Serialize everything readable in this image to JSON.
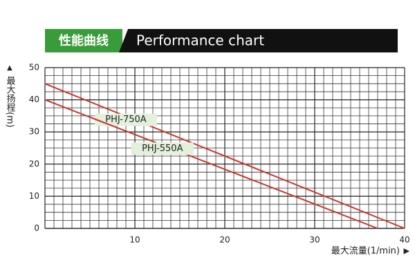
{
  "chart_data": {
    "type": "line",
    "title": "性能曲线",
    "subtitle": "Performance chart",
    "x_label": "最大流量(1/min)",
    "y_label": "最大扬程(m)",
    "xlim": [
      0,
      40
    ],
    "xticks": [
      10,
      20,
      30,
      40
    ],
    "ylim": [
      0,
      50
    ],
    "yticks": [
      0,
      10,
      20,
      30,
      40,
      50
    ],
    "grid": true,
    "series": [
      {
        "name": "PHJ-750A",
        "color": "#c8352e",
        "x": [
          0,
          40
        ],
        "values": [
          45,
          0
        ]
      },
      {
        "name": "PHJ-550A",
        "color": "#c8352e",
        "x": [
          0,
          37
        ],
        "values": [
          40,
          0
        ]
      }
    ]
  }
}
